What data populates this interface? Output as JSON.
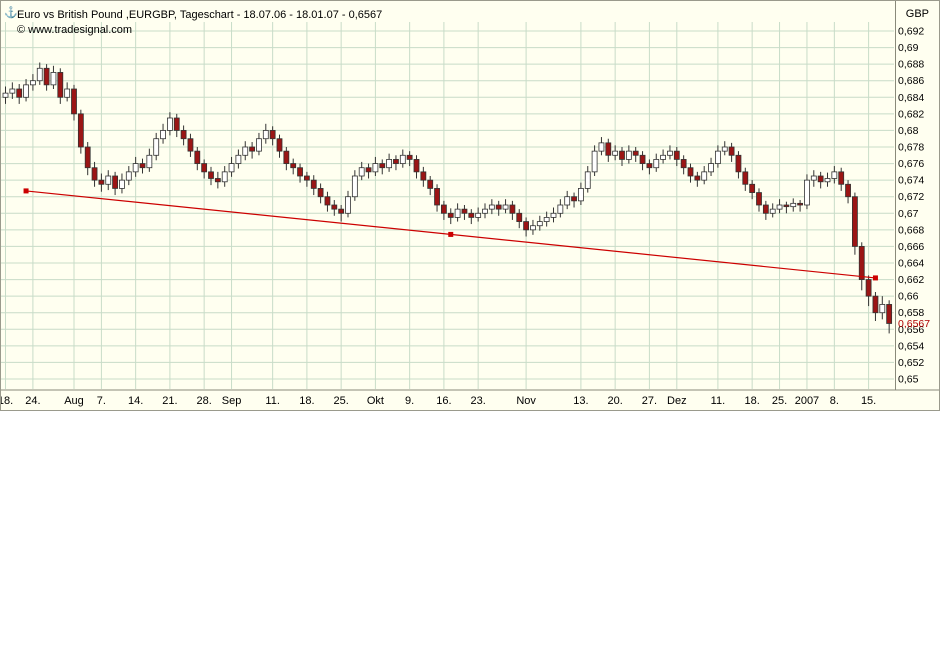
{
  "chart": {
    "title": "Euro vs British Pound ,EURGBP, Tageschart - 18.07.06 - 18.01.07 - 0,6567",
    "copyright": "© www.tradesignal.com",
    "currency": "GBP",
    "icon": "⚓"
  },
  "chart_data": {
    "type": "candlestick",
    "title": "Euro vs British Pound ,EURGBP, Tageschart - 18.07.06 - 18.01.07 - 0,6567",
    "instrument": "EURGBP",
    "timeframe": "Tageschart",
    "period": "18.07.06 - 18.01.07",
    "ylim": [
      0.65,
      0.692
    ],
    "grid": true,
    "y_ticks": [
      {
        "value": 0.692,
        "label": "0,692"
      },
      {
        "value": 0.69,
        "label": "0,69"
      },
      {
        "value": 0.688,
        "label": "0,688"
      },
      {
        "value": 0.686,
        "label": "0,686"
      },
      {
        "value": 0.684,
        "label": "0,684"
      },
      {
        "value": 0.682,
        "label": "0,682"
      },
      {
        "value": 0.68,
        "label": "0,68"
      },
      {
        "value": 0.678,
        "label": "0,678"
      },
      {
        "value": 0.676,
        "label": "0,676"
      },
      {
        "value": 0.674,
        "label": "0,674"
      },
      {
        "value": 0.672,
        "label": "0,672"
      },
      {
        "value": 0.67,
        "label": "0,67"
      },
      {
        "value": 0.668,
        "label": "0,668"
      },
      {
        "value": 0.666,
        "label": "0,666"
      },
      {
        "value": 0.664,
        "label": "0,664"
      },
      {
        "value": 0.662,
        "label": "0,662"
      },
      {
        "value": 0.66,
        "label": "0,66"
      },
      {
        "value": 0.658,
        "label": "0,658"
      },
      {
        "value": 0.656,
        "label": "0,656"
      },
      {
        "value": 0.654,
        "label": "0,654"
      },
      {
        "value": 0.652,
        "label": "0,652"
      },
      {
        "value": 0.65,
        "label": "0,65"
      }
    ],
    "x_ticks": [
      {
        "label": "18.",
        "index": 0
      },
      {
        "label": "24.",
        "index": 4
      },
      {
        "label": "Aug",
        "index": 10
      },
      {
        "label": "7.",
        "index": 14
      },
      {
        "label": "14.",
        "index": 19
      },
      {
        "label": "21.",
        "index": 24
      },
      {
        "label": "28.",
        "index": 29
      },
      {
        "label": "Sep",
        "index": 33
      },
      {
        "label": "11.",
        "index": 39
      },
      {
        "label": "18.",
        "index": 44
      },
      {
        "label": "25.",
        "index": 49
      },
      {
        "label": "Okt",
        "index": 54
      },
      {
        "label": "9.",
        "index": 59
      },
      {
        "label": "16.",
        "index": 64
      },
      {
        "label": "23.",
        "index": 69
      },
      {
        "label": "Nov",
        "index": 76
      },
      {
        "label": "13.",
        "index": 84
      },
      {
        "label": "20.",
        "index": 89
      },
      {
        "label": "27.",
        "index": 94
      },
      {
        "label": "Dez",
        "index": 98
      },
      {
        "label": "11.",
        "index": 104
      },
      {
        "label": "18.",
        "index": 109
      },
      {
        "label": "25.",
        "index": 113
      },
      {
        "label": "2007",
        "index": 117
      },
      {
        "label": "8.",
        "index": 121
      },
      {
        "label": "15.",
        "index": 126
      }
    ],
    "last_price": {
      "value": 0.6567,
      "label": "0,6567"
    },
    "trendline": {
      "x1_index": 3,
      "price1": 0.6727,
      "x2_index": 127,
      "price2": 0.6622
    },
    "colors": {
      "background": "#fffff0",
      "grid": "#c8dcc8",
      "axis": "#8a8a7a",
      "text": "#000000",
      "down": "#9b1515",
      "up": "#ffffff",
      "wick": "#333333",
      "candle_border": "#333333",
      "trendline": "#cc0000",
      "last_price_color": "#b00000"
    },
    "candles": [
      [
        0.684,
        0.6853,
        0.6832,
        0.6845
      ],
      [
        0.6845,
        0.6858,
        0.6838,
        0.685
      ],
      [
        0.685,
        0.6856,
        0.6832,
        0.684
      ],
      [
        0.684,
        0.6862,
        0.6835,
        0.6855
      ],
      [
        0.6855,
        0.6868,
        0.6848,
        0.686
      ],
      [
        0.686,
        0.6882,
        0.6855,
        0.6875
      ],
      [
        0.6875,
        0.688,
        0.6848,
        0.6855
      ],
      [
        0.6855,
        0.6878,
        0.685,
        0.687
      ],
      [
        0.687,
        0.6875,
        0.6832,
        0.684
      ],
      [
        0.684,
        0.6858,
        0.6835,
        0.685
      ],
      [
        0.685,
        0.6855,
        0.6812,
        0.682
      ],
      [
        0.682,
        0.6825,
        0.6772,
        0.678
      ],
      [
        0.678,
        0.6786,
        0.6746,
        0.6755
      ],
      [
        0.6755,
        0.6762,
        0.6732,
        0.674
      ],
      [
        0.674,
        0.6748,
        0.6726,
        0.6735
      ],
      [
        0.6735,
        0.6752,
        0.6728,
        0.6745
      ],
      [
        0.6745,
        0.675,
        0.6722,
        0.673
      ],
      [
        0.673,
        0.6748,
        0.6724,
        0.674
      ],
      [
        0.674,
        0.6757,
        0.6734,
        0.675
      ],
      [
        0.675,
        0.6768,
        0.6744,
        0.676
      ],
      [
        0.676,
        0.6766,
        0.6748,
        0.6755
      ],
      [
        0.6755,
        0.6778,
        0.675,
        0.677
      ],
      [
        0.677,
        0.6797,
        0.6764,
        0.679
      ],
      [
        0.679,
        0.6808,
        0.6784,
        0.68
      ],
      [
        0.68,
        0.6822,
        0.6794,
        0.6815
      ],
      [
        0.6815,
        0.682,
        0.6792,
        0.68
      ],
      [
        0.68,
        0.6806,
        0.6782,
        0.679
      ],
      [
        0.679,
        0.6796,
        0.6768,
        0.6775
      ],
      [
        0.6775,
        0.678,
        0.6752,
        0.676
      ],
      [
        0.676,
        0.6765,
        0.6742,
        0.675
      ],
      [
        0.675,
        0.6756,
        0.6734,
        0.6742
      ],
      [
        0.6742,
        0.675,
        0.673,
        0.6738
      ],
      [
        0.6738,
        0.6757,
        0.6732,
        0.675
      ],
      [
        0.675,
        0.6768,
        0.6744,
        0.676
      ],
      [
        0.676,
        0.6777,
        0.6754,
        0.677
      ],
      [
        0.677,
        0.6787,
        0.6764,
        0.678
      ],
      [
        0.678,
        0.6786,
        0.6766,
        0.6775
      ],
      [
        0.6775,
        0.6797,
        0.677,
        0.679
      ],
      [
        0.679,
        0.6808,
        0.6784,
        0.68
      ],
      [
        0.68,
        0.6805,
        0.6782,
        0.679
      ],
      [
        0.679,
        0.6795,
        0.6767,
        0.6775
      ],
      [
        0.6775,
        0.678,
        0.6752,
        0.676
      ],
      [
        0.676,
        0.6766,
        0.6747,
        0.6755
      ],
      [
        0.6755,
        0.676,
        0.6737,
        0.6745
      ],
      [
        0.6745,
        0.675,
        0.6732,
        0.674
      ],
      [
        0.674,
        0.6746,
        0.6722,
        0.673
      ],
      [
        0.673,
        0.6736,
        0.6712,
        0.672
      ],
      [
        0.672,
        0.6726,
        0.6702,
        0.671
      ],
      [
        0.671,
        0.6716,
        0.6697,
        0.6705
      ],
      [
        0.6705,
        0.671,
        0.669,
        0.67
      ],
      [
        0.67,
        0.6727,
        0.6695,
        0.672
      ],
      [
        0.672,
        0.6752,
        0.6715,
        0.6745
      ],
      [
        0.6745,
        0.6762,
        0.674,
        0.6755
      ],
      [
        0.6755,
        0.676,
        0.6742,
        0.675
      ],
      [
        0.675,
        0.6768,
        0.6745,
        0.676
      ],
      [
        0.676,
        0.6765,
        0.6747,
        0.6755
      ],
      [
        0.6755,
        0.6772,
        0.675,
        0.6765
      ],
      [
        0.6765,
        0.677,
        0.6752,
        0.676
      ],
      [
        0.676,
        0.6777,
        0.6755,
        0.677
      ],
      [
        0.677,
        0.6775,
        0.6757,
        0.6765
      ],
      [
        0.6765,
        0.677,
        0.6742,
        0.675
      ],
      [
        0.675,
        0.6756,
        0.6732,
        0.674
      ],
      [
        0.674,
        0.6745,
        0.6722,
        0.673
      ],
      [
        0.673,
        0.6735,
        0.6702,
        0.671
      ],
      [
        0.671,
        0.6715,
        0.6692,
        0.67
      ],
      [
        0.67,
        0.6706,
        0.6687,
        0.6695
      ],
      [
        0.6695,
        0.6712,
        0.669,
        0.6705
      ],
      [
        0.6705,
        0.671,
        0.6692,
        0.67
      ],
      [
        0.67,
        0.6705,
        0.6687,
        0.6695
      ],
      [
        0.6695,
        0.6707,
        0.669,
        0.67
      ],
      [
        0.67,
        0.6712,
        0.6694,
        0.6705
      ],
      [
        0.6705,
        0.6717,
        0.6699,
        0.671
      ],
      [
        0.671,
        0.6715,
        0.6697,
        0.6705
      ],
      [
        0.6705,
        0.6717,
        0.67,
        0.671
      ],
      [
        0.671,
        0.6715,
        0.6692,
        0.67
      ],
      [
        0.67,
        0.6705,
        0.6682,
        0.669
      ],
      [
        0.669,
        0.6695,
        0.6672,
        0.668
      ],
      [
        0.668,
        0.6692,
        0.6674,
        0.6685
      ],
      [
        0.6685,
        0.6697,
        0.6679,
        0.669
      ],
      [
        0.669,
        0.6702,
        0.6684,
        0.6695
      ],
      [
        0.6695,
        0.6707,
        0.6689,
        0.67
      ],
      [
        0.67,
        0.6717,
        0.6695,
        0.671
      ],
      [
        0.671,
        0.6727,
        0.6705,
        0.672
      ],
      [
        0.672,
        0.6725,
        0.6707,
        0.6715
      ],
      [
        0.6715,
        0.6737,
        0.671,
        0.673
      ],
      [
        0.673,
        0.6757,
        0.6725,
        0.675
      ],
      [
        0.675,
        0.6782,
        0.6745,
        0.6775
      ],
      [
        0.6775,
        0.6792,
        0.677,
        0.6785
      ],
      [
        0.6785,
        0.679,
        0.6762,
        0.677
      ],
      [
        0.677,
        0.6782,
        0.6764,
        0.6775
      ],
      [
        0.6775,
        0.678,
        0.6757,
        0.6765
      ],
      [
        0.6765,
        0.6782,
        0.676,
        0.6775
      ],
      [
        0.6775,
        0.678,
        0.6762,
        0.677
      ],
      [
        0.677,
        0.6775,
        0.6752,
        0.676
      ],
      [
        0.676,
        0.6765,
        0.6747,
        0.6755
      ],
      [
        0.6755,
        0.6772,
        0.675,
        0.6765
      ],
      [
        0.6765,
        0.6777,
        0.676,
        0.677
      ],
      [
        0.677,
        0.6782,
        0.6765,
        0.6775
      ],
      [
        0.6775,
        0.678,
        0.6757,
        0.6765
      ],
      [
        0.6765,
        0.677,
        0.6747,
        0.6755
      ],
      [
        0.6755,
        0.676,
        0.6737,
        0.6745
      ],
      [
        0.6745,
        0.675,
        0.6732,
        0.674
      ],
      [
        0.674,
        0.6757,
        0.6735,
        0.675
      ],
      [
        0.675,
        0.6767,
        0.6745,
        0.676
      ],
      [
        0.676,
        0.6782,
        0.6755,
        0.6775
      ],
      [
        0.6775,
        0.6787,
        0.677,
        0.678
      ],
      [
        0.678,
        0.6785,
        0.6762,
        0.677
      ],
      [
        0.677,
        0.6775,
        0.6742,
        0.675
      ],
      [
        0.675,
        0.6755,
        0.6727,
        0.6735
      ],
      [
        0.6735,
        0.674,
        0.6717,
        0.6725
      ],
      [
        0.6725,
        0.673,
        0.6702,
        0.671
      ],
      [
        0.671,
        0.6715,
        0.6692,
        0.67
      ],
      [
        0.67,
        0.6712,
        0.6695,
        0.6705
      ],
      [
        0.6705,
        0.6717,
        0.67,
        0.671
      ],
      [
        0.671,
        0.6714,
        0.67,
        0.6708
      ],
      [
        0.6708,
        0.6718,
        0.6702,
        0.6712
      ],
      [
        0.6712,
        0.6716,
        0.6702,
        0.671
      ],
      [
        0.671,
        0.6747,
        0.6705,
        0.674
      ],
      [
        0.674,
        0.6752,
        0.6732,
        0.6745
      ],
      [
        0.6745,
        0.675,
        0.673,
        0.6738
      ],
      [
        0.6738,
        0.6749,
        0.6732,
        0.6742
      ],
      [
        0.6742,
        0.6757,
        0.6736,
        0.675
      ],
      [
        0.675,
        0.6755,
        0.6727,
        0.6735
      ],
      [
        0.6735,
        0.674,
        0.6712,
        0.672
      ],
      [
        0.672,
        0.6725,
        0.665,
        0.666
      ],
      [
        0.666,
        0.6665,
        0.6607,
        0.662
      ],
      [
        0.662,
        0.6625,
        0.6588,
        0.66
      ],
      [
        0.66,
        0.6605,
        0.657,
        0.658
      ],
      [
        0.658,
        0.66,
        0.6572,
        0.659
      ],
      [
        0.659,
        0.6595,
        0.6555,
        0.6567
      ]
    ]
  }
}
